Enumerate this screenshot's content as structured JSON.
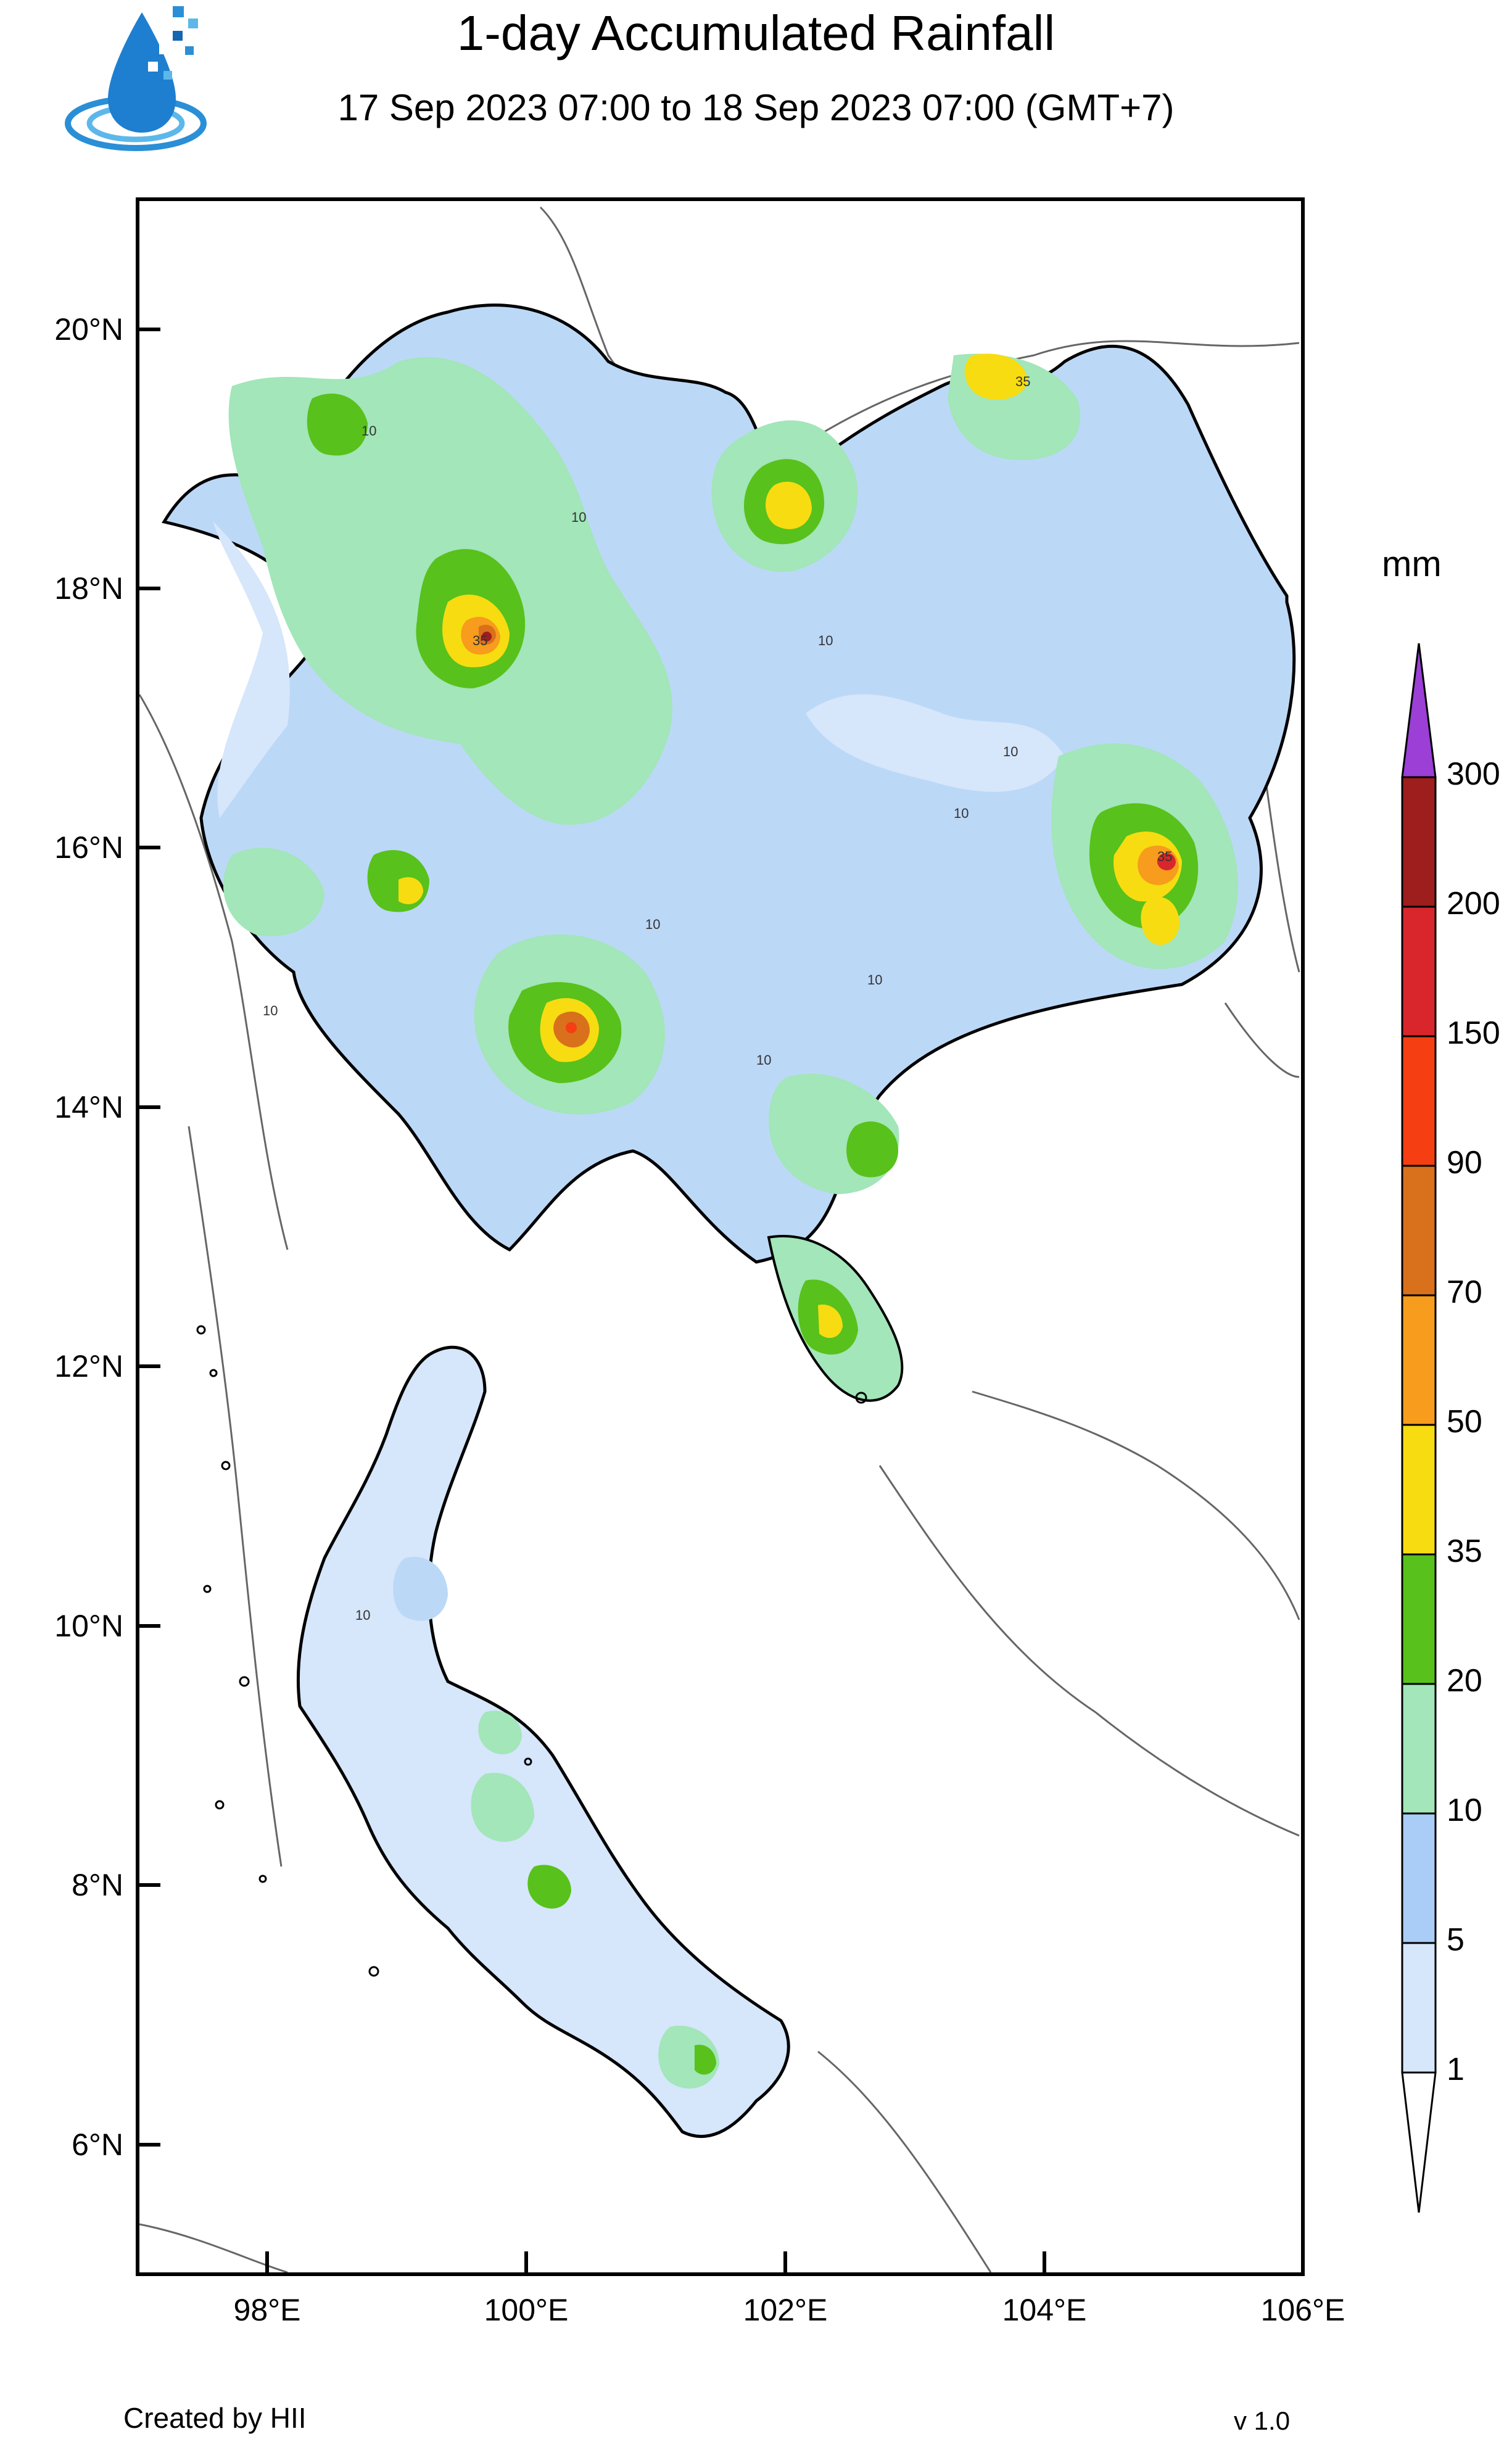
{
  "header": {
    "title": "1-day Accumulated Rainfall",
    "subtitle": "17 Sep 2023 07:00 to 18 Sep 2023 07:00 (GMT+7)"
  },
  "logo": {
    "icon": "water-drop-logo-icon",
    "colors": [
      "#2a8fd6",
      "#1565b0",
      "#5cb8ea"
    ]
  },
  "map": {
    "lat_ticks": [
      "20°N",
      "18°N",
      "16°N",
      "14°N",
      "12°N",
      "10°N",
      "8°N",
      "6°N"
    ],
    "lon_ticks": [
      "98°E",
      "100°E",
      "102°E",
      "104°E",
      "106°E"
    ],
    "contour_labels": [
      "10",
      "10",
      "10",
      "10",
      "10",
      "10",
      "10",
      "10",
      "10",
      "10",
      "35",
      "35",
      "35"
    ]
  },
  "legend": {
    "unit": "mm",
    "labels": [
      "1",
      "5",
      "10",
      "20",
      "35",
      "50",
      "70",
      "90",
      "150",
      "200",
      "300"
    ],
    "colors": [
      "#d6e6fb",
      "#a9cdf6",
      "#a2e6b9",
      "#58c11b",
      "#f7dc12",
      "#f79c1c",
      "#d9701c",
      "#f53e12",
      "#d8262c",
      "#9e1d1d",
      "#9b3fd6"
    ]
  },
  "colors": {
    "no_rain": "#ffffff",
    "border": "#000000",
    "neighbor_border": "#555555"
  },
  "footer": {
    "credit": "Created by HII",
    "version": "v 1.0"
  }
}
